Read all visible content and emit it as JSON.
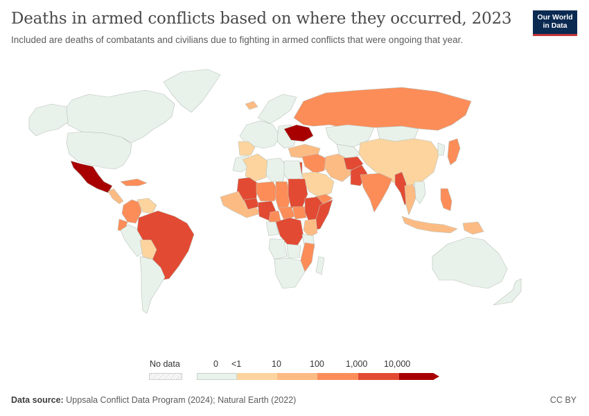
{
  "title": "Deaths in armed conflicts based on where they occurred, 2023",
  "subtitle": "Included are deaths of combatants and civilians due to fighting in armed conflicts that were ongoing that year.",
  "logo": {
    "line1": "Our World",
    "line2": "in Data",
    "bg_color": "#0b2a52",
    "accent_color": "#c4353a"
  },
  "legend": {
    "no_data_label": "No data",
    "bins": [
      {
        "label": "0",
        "color": "#e9f2ea"
      },
      {
        "label": "<1",
        "color": "#fdd49e"
      },
      {
        "label": "10",
        "color": "#fdbb84"
      },
      {
        "label": "100",
        "color": "#fc8d59"
      },
      {
        "label": "1,000",
        "color": "#e34a33"
      },
      {
        "label": "10,000",
        "color": "#a80000"
      }
    ]
  },
  "footer": {
    "source_label": "Data source:",
    "source_text": "Uppsala Conflict Data Program (2024); Natural Earth (2022)",
    "license": "CC BY"
  },
  "colors": {
    "bin0": "#e9f2ea",
    "bin1": "#fdd49e",
    "bin2": "#fdbb84",
    "bin3": "#fc8d59",
    "bin4": "#e34a33",
    "bin5": "#a80000",
    "border": "#b7c1b9"
  },
  "regions": [
    {
      "name": "Canada",
      "bin": 0
    },
    {
      "name": "Alaska",
      "bin": 0
    },
    {
      "name": "Greenland",
      "bin": 0
    },
    {
      "name": "United States",
      "bin": 0
    },
    {
      "name": "Mexico",
      "bin": 5
    },
    {
      "name": "Central America",
      "bin": 2
    },
    {
      "name": "Caribbean",
      "bin": 3
    },
    {
      "name": "Colombia",
      "bin": 3
    },
    {
      "name": "Venezuela",
      "bin": 1
    },
    {
      "name": "Ecuador",
      "bin": 3
    },
    {
      "name": "Peru",
      "bin": 0
    },
    {
      "name": "Brazil",
      "bin": 4
    },
    {
      "name": "Bolivia",
      "bin": 1
    },
    {
      "name": "Southern Cone",
      "bin": 0
    },
    {
      "name": "Iceland",
      "bin": 2
    },
    {
      "name": "Western Europe",
      "bin": 0
    },
    {
      "name": "Spain",
      "bin": 1
    },
    {
      "name": "Scandinavia",
      "bin": 0
    },
    {
      "name": "Eastern Europe",
      "bin": 0
    },
    {
      "name": "Ukraine",
      "bin": 5
    },
    {
      "name": "Turkey",
      "bin": 2
    },
    {
      "name": "Russia",
      "bin": 3
    },
    {
      "name": "Kazakhstan",
      "bin": 0
    },
    {
      "name": "Central Asia",
      "bin": 0
    },
    {
      "name": "Mongolia",
      "bin": 0
    },
    {
      "name": "China",
      "bin": 1
    },
    {
      "name": "Korea",
      "bin": 0
    },
    {
      "name": "Japan",
      "bin": 3
    },
    {
      "name": "Iran",
      "bin": 2
    },
    {
      "name": "Iraq and Syria",
      "bin": 3
    },
    {
      "name": "Israel and Palestine",
      "bin": 4
    },
    {
      "name": "Saudi Arabia",
      "bin": 1
    },
    {
      "name": "Yemen",
      "bin": 3
    },
    {
      "name": "Afghanistan",
      "bin": 4
    },
    {
      "name": "Pakistan",
      "bin": 4
    },
    {
      "name": "India",
      "bin": 3
    },
    {
      "name": "Myanmar",
      "bin": 4
    },
    {
      "name": "Thailand",
      "bin": 2
    },
    {
      "name": "Southeast Asia",
      "bin": 0
    },
    {
      "name": "Philippines",
      "bin": 3
    },
    {
      "name": "Indonesia",
      "bin": 2
    },
    {
      "name": "Papua New Guinea",
      "bin": 2
    },
    {
      "name": "Australia",
      "bin": 0
    },
    {
      "name": "New Zealand",
      "bin": 0
    },
    {
      "name": "Morocco",
      "bin": 0
    },
    {
      "name": "Algeria",
      "bin": 1
    },
    {
      "name": "Libya",
      "bin": 0
    },
    {
      "name": "Egypt",
      "bin": 0
    },
    {
      "name": "Mali",
      "bin": 4
    },
    {
      "name": "Niger",
      "bin": 3
    },
    {
      "name": "Chad",
      "bin": 3
    },
    {
      "name": "Sudan",
      "bin": 4
    },
    {
      "name": "West Africa",
      "bin": 2
    },
    {
      "name": "Burkina Faso",
      "bin": 4
    },
    {
      "name": "Nigeria",
      "bin": 4
    },
    {
      "name": "Cameroon",
      "bin": 3
    },
    {
      "name": "Central African Republic",
      "bin": 3
    },
    {
      "name": "South Sudan",
      "bin": 3
    },
    {
      "name": "Ethiopia",
      "bin": 4
    },
    {
      "name": "Somalia",
      "bin": 4
    },
    {
      "name": "Kenya",
      "bin": 2
    },
    {
      "name": "DR Congo",
      "bin": 4
    },
    {
      "name": "Congo and Gabon",
      "bin": 0
    },
    {
      "name": "Tanzania",
      "bin": 0
    },
    {
      "name": "Angola",
      "bin": 0
    },
    {
      "name": "Zambia",
      "bin": 0
    },
    {
      "name": "Mozambique",
      "bin": 3
    },
    {
      "name": "Southern Africa",
      "bin": 0
    },
    {
      "name": "Madagascar",
      "bin": 0
    }
  ]
}
